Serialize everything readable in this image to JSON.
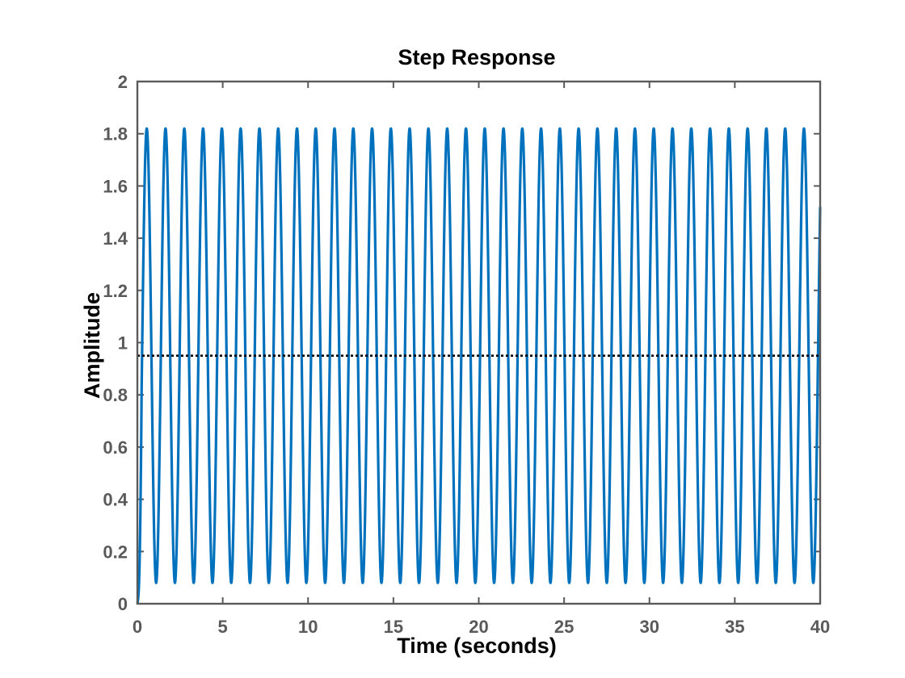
{
  "chart_data": {
    "type": "line",
    "title": "Step Response",
    "xlabel": "Time (seconds)",
    "ylabel": "Amplitude",
    "xlim": [
      0,
      40
    ],
    "ylim": [
      0,
      2
    ],
    "x_ticks": [
      0,
      5,
      10,
      15,
      20,
      25,
      30,
      35,
      40
    ],
    "x_tick_labels": [
      "0",
      "5",
      "10",
      "15",
      "20",
      "25",
      "30",
      "35",
      "40"
    ],
    "y_ticks": [
      0,
      0.2,
      0.4,
      0.6,
      0.8,
      1,
      1.2,
      1.4,
      1.6,
      1.8,
      2
    ],
    "y_tick_labels": [
      "0",
      "0.2",
      "0.4",
      "0.6",
      "0.8",
      "1",
      "1.2",
      "1.4",
      "1.6",
      "1.8",
      "2"
    ],
    "grid": false,
    "series": [
      {
        "values": {
          "form": "undamped oscillation",
          "start": 0,
          "mean": 0.95,
          "min": 0.08,
          "max": 1.82,
          "period": 1.1,
          "end_x": 40
        }
      }
    ],
    "reference_line": {
      "y": 0.95,
      "style": "dotted"
    },
    "colors": {
      "series": "#0072bd",
      "reference_line": "#000000",
      "axes": "#5a5a5a",
      "title": "#000000"
    }
  }
}
